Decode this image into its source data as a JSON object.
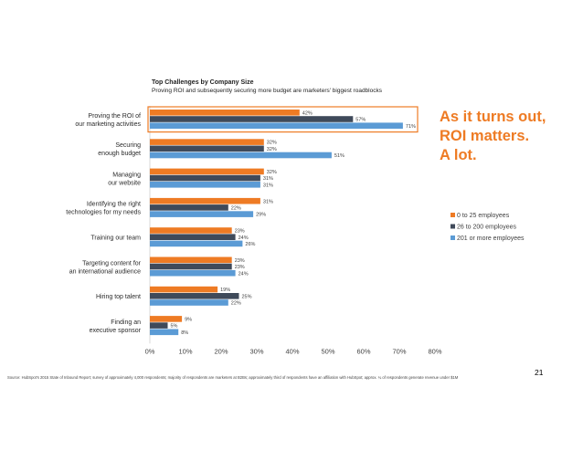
{
  "chart_data": {
    "type": "bar",
    "orientation": "horizontal",
    "title": "Top Challenges by Company Size",
    "subtitle": "Proving ROI and subsequently securing more budget are marketers' biggest roadblocks",
    "categories": [
      [
        "Proving the ROI of",
        "our marketing activities"
      ],
      [
        "Securing",
        "enough budget"
      ],
      [
        "Managing",
        "our website"
      ],
      [
        "Identifying the right",
        "technologies for my needs"
      ],
      [
        "Training our team"
      ],
      [
        "Targeting content for",
        "an international audience"
      ],
      [
        "Hiring top talent"
      ],
      [
        "Finding an",
        "executive sponsor"
      ]
    ],
    "series": [
      {
        "name": "0 to 25 employees",
        "color": "#ee7b24",
        "values": [
          42,
          32,
          32,
          31,
          23,
          23,
          19,
          9
        ]
      },
      {
        "name": "26 to 200 employees",
        "color": "#3f4a5a",
        "values": [
          57,
          32,
          31,
          22,
          24,
          23,
          25,
          5
        ]
      },
      {
        "name": "201 or more employees",
        "color": "#5b9bd5",
        "values": [
          71,
          51,
          31,
          29,
          26,
          24,
          22,
          8
        ]
      }
    ],
    "data_labels": [
      [
        "42%",
        "32%",
        "32%",
        "31%",
        "23%",
        "23%",
        "19%",
        "9%"
      ],
      [
        "57%",
        "32%",
        "31%",
        "22%",
        "24%",
        "23%",
        "25%",
        "5%"
      ],
      [
        "71%",
        "51%",
        "31%",
        "29%",
        "26%",
        "24%",
        "22%",
        "8%"
      ]
    ],
    "xlim": [
      0,
      80
    ],
    "xticks": [
      0,
      10,
      20,
      30,
      40,
      50,
      60,
      70,
      80
    ],
    "xtick_labels": [
      "0%",
      "10%",
      "20%",
      "30%",
      "40%",
      "50%",
      "60%",
      "70%",
      "80%"
    ],
    "highlight_category": 0,
    "highlight_color": "#ee7b24",
    "legend_position": "right"
  },
  "callout": {
    "lines": [
      "As it turns out,",
      "ROI matters.",
      "A lot."
    ]
  },
  "footnote": "Source: HubSpot's 2015 State of Inbound Report; survey of approximately 4,000 respondents; majority of respondents are marketers at B2Bs; approximately third of respondents have an affiliation with HubSpot; approx. ¼ of respondents generate revenue under $1M",
  "page_number": "21"
}
